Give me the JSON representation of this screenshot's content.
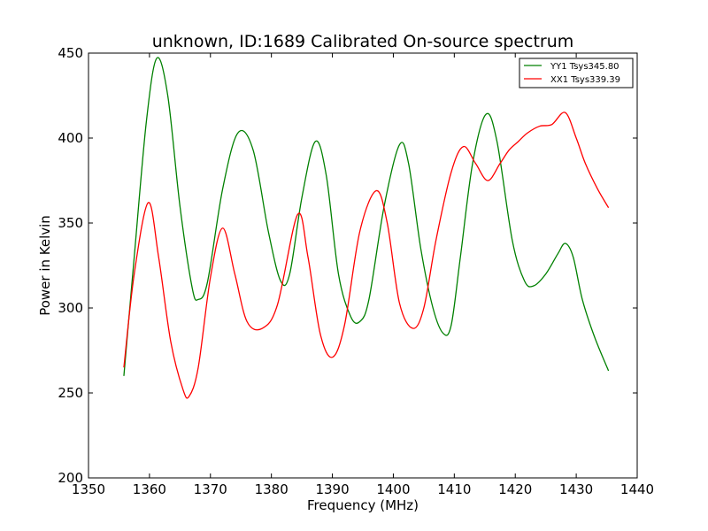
{
  "chart_data": {
    "type": "line",
    "title": "unknown, ID:1689 Calibrated On-source spectrum",
    "xlabel": "Frequency (MHz)",
    "ylabel": "Power in Kelvin",
    "xlim": [
      1350,
      1440
    ],
    "ylim": [
      200,
      450
    ],
    "xticks": [
      "1350",
      "1360",
      "1370",
      "1380",
      "1390",
      "1400",
      "1410",
      "1420",
      "1430",
      "1440"
    ],
    "yticks": [
      "200",
      "250",
      "300",
      "350",
      "400",
      "450"
    ],
    "grid": false,
    "legend_position": "top-right",
    "series": [
      {
        "name": "YY1 Tsys345.80",
        "color": "#008000",
        "x": [
          1355.8,
          1357.5,
          1359.5,
          1361.2,
          1363,
          1365,
          1367,
          1368,
          1369.5,
          1372,
          1374.5,
          1377,
          1379.5,
          1381.5,
          1383,
          1385,
          1387.2,
          1389,
          1391,
          1393,
          1394.5,
          1396,
          1398.5,
          1401,
          1402.5,
          1404.5,
          1406.5,
          1408.2,
          1409.5,
          1411,
          1413,
          1415.2,
          1417,
          1419.5,
          1421.5,
          1423,
          1425,
          1427,
          1428.2,
          1429.5,
          1431,
          1433,
          1435.3
        ],
        "y": [
          260,
          330,
          410,
          447,
          425,
          360,
          312,
          305,
          315,
          370,
          403,
          393,
          345,
          316,
          320,
          365,
          398,
          378,
          320,
          295,
          292,
          305,
          360,
          396,
          385,
          335,
          300,
          285,
          290,
          330,
          385,
          414,
          398,
          340,
          316,
          313,
          320,
          332,
          338,
          330,
          305,
          283,
          263
        ]
      },
      {
        "name": "XX1 Tsys339.39",
        "color": "#ff0000",
        "x": [
          1355.8,
          1357.5,
          1359.8,
          1361.5,
          1363.5,
          1365.5,
          1366.5,
          1368,
          1370,
          1372,
          1374,
          1376,
          1378.5,
          1381,
          1384.3,
          1386,
          1388,
          1390,
          1392,
          1394.5,
          1397.2,
          1399,
          1401,
          1403.2,
          1405,
          1407,
          1409.5,
          1411.5,
          1413.5,
          1415.5,
          1417.5,
          1419,
          1420.5,
          1422,
          1424,
          1426,
          1428.2,
          1430,
          1431.5,
          1433.5,
          1435.3
        ],
        "y": [
          265,
          320,
          362,
          330,
          280,
          252,
          248,
          265,
          318,
          347,
          320,
          292,
          288,
          302,
          355,
          330,
          285,
          271,
          290,
          345,
          369,
          350,
          303,
          288,
          300,
          340,
          380,
          395,
          385,
          375,
          385,
          393,
          398,
          403,
          407,
          408,
          415,
          400,
          385,
          370,
          359
        ]
      }
    ]
  }
}
